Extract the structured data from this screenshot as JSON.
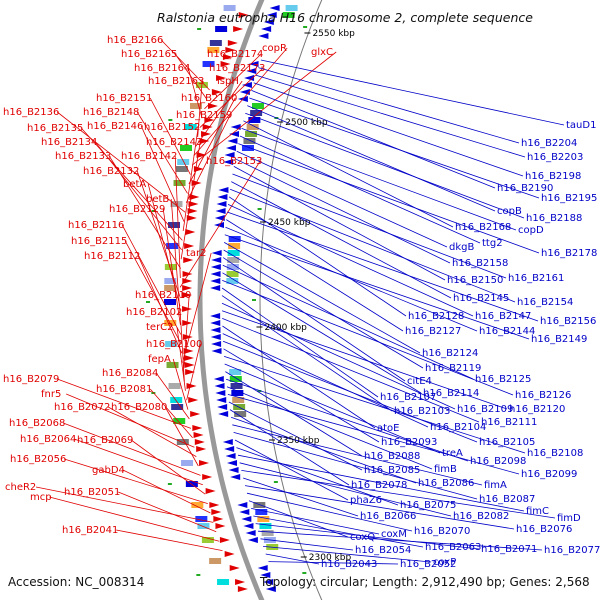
{
  "title": "Ralstonia eutropha H16 chromosome 2, complete sequence",
  "footer": {
    "accession": "Accession: NC_008314",
    "summary": "Topology: circular; Length: 2,912,490 bp; Genes: 2,568"
  },
  "ticks": [
    "2550 kbp",
    "2500 kbp",
    "2450 kbp",
    "2400 kbp",
    "2350 kbp",
    "2300 kbp"
  ],
  "left_labels": [
    "h16_B2166",
    "h16_B2165",
    "h16_B2174",
    "h16_B2164",
    "h16_B2173",
    "h16_B2163",
    "ispH",
    "copR",
    "glxC",
    "h16_B2151",
    "h16_B2160",
    "h16_B2148",
    "h16_B2159",
    "h16_B2136",
    "h16_B2146",
    "h16_B2152",
    "h16_B2135",
    "h16_B2134",
    "h16_B2143",
    "h16_B2133",
    "h16_B2142",
    "h16_B2153",
    "h16_B2132",
    "betA",
    "betB",
    "h16_B2129",
    "h16_B2116",
    "h16_B2115",
    "h16_B2112",
    "tar2",
    "h16_B2110",
    "h16_B2102",
    "terC2",
    "h16_B2100",
    "fepA",
    "h16_B2084",
    "h16_B2079",
    "h16_B2081",
    "fnr5",
    "h16_B2072",
    "h16_B2080",
    "h16_B2068",
    "h16_B2064",
    "h16_B2069",
    "h16_B2056",
    "gabD4",
    "cheR2",
    "h16_B2051",
    "mcp",
    "h16_B2041"
  ],
  "right_labels": [
    "tauD1",
    "h16_B2204",
    "h16_B2203",
    "h16_B2198",
    "h16_B2190",
    "h16_B2195",
    "copB",
    "h16_B2188",
    "h16_B2168",
    "copD",
    "ttg2",
    "h16_B2178",
    "dkgB",
    "h16_B2158",
    "h16_B2150",
    "h16_B2161",
    "h16_B2145",
    "h16_B2154",
    "h16_B2128",
    "h16_B2147",
    "h16_B2156",
    "h16_B2127",
    "h16_B2144",
    "h16_B2149",
    "h16_B2124",
    "h16_B2119",
    "citE4",
    "h16_B2125",
    "h16_B2114",
    "h16_B2126",
    "h16_B2107",
    "h16_B2103",
    "h16_B2109",
    "h16_B2120",
    "h16_B2111",
    "atoE",
    "h16_B2104",
    "h16_B2105",
    "h16_B2093",
    "h16_B2108",
    "treA",
    "h16_B2088",
    "h16_B2098",
    "fimB",
    "h16_B2099",
    "h16_B2085",
    "h16_B2078",
    "h16_B2086",
    "fimA",
    "h16_B2087",
    "phaZ6",
    "h16_B2075",
    "fimC",
    "h16_B2082",
    "fimD",
    "h16_B2066",
    "h16_B2076",
    "h16_B2070",
    "coxQ",
    "coxM",
    "h16_B2063",
    "h16_B2071",
    "h16_B2077",
    "h16_B2054",
    "coxP",
    "h16_B2043",
    "h16_B2052"
  ],
  "colors": {
    "left": "#e00000",
    "right": "#0000c8",
    "backbone": "#888888"
  }
}
